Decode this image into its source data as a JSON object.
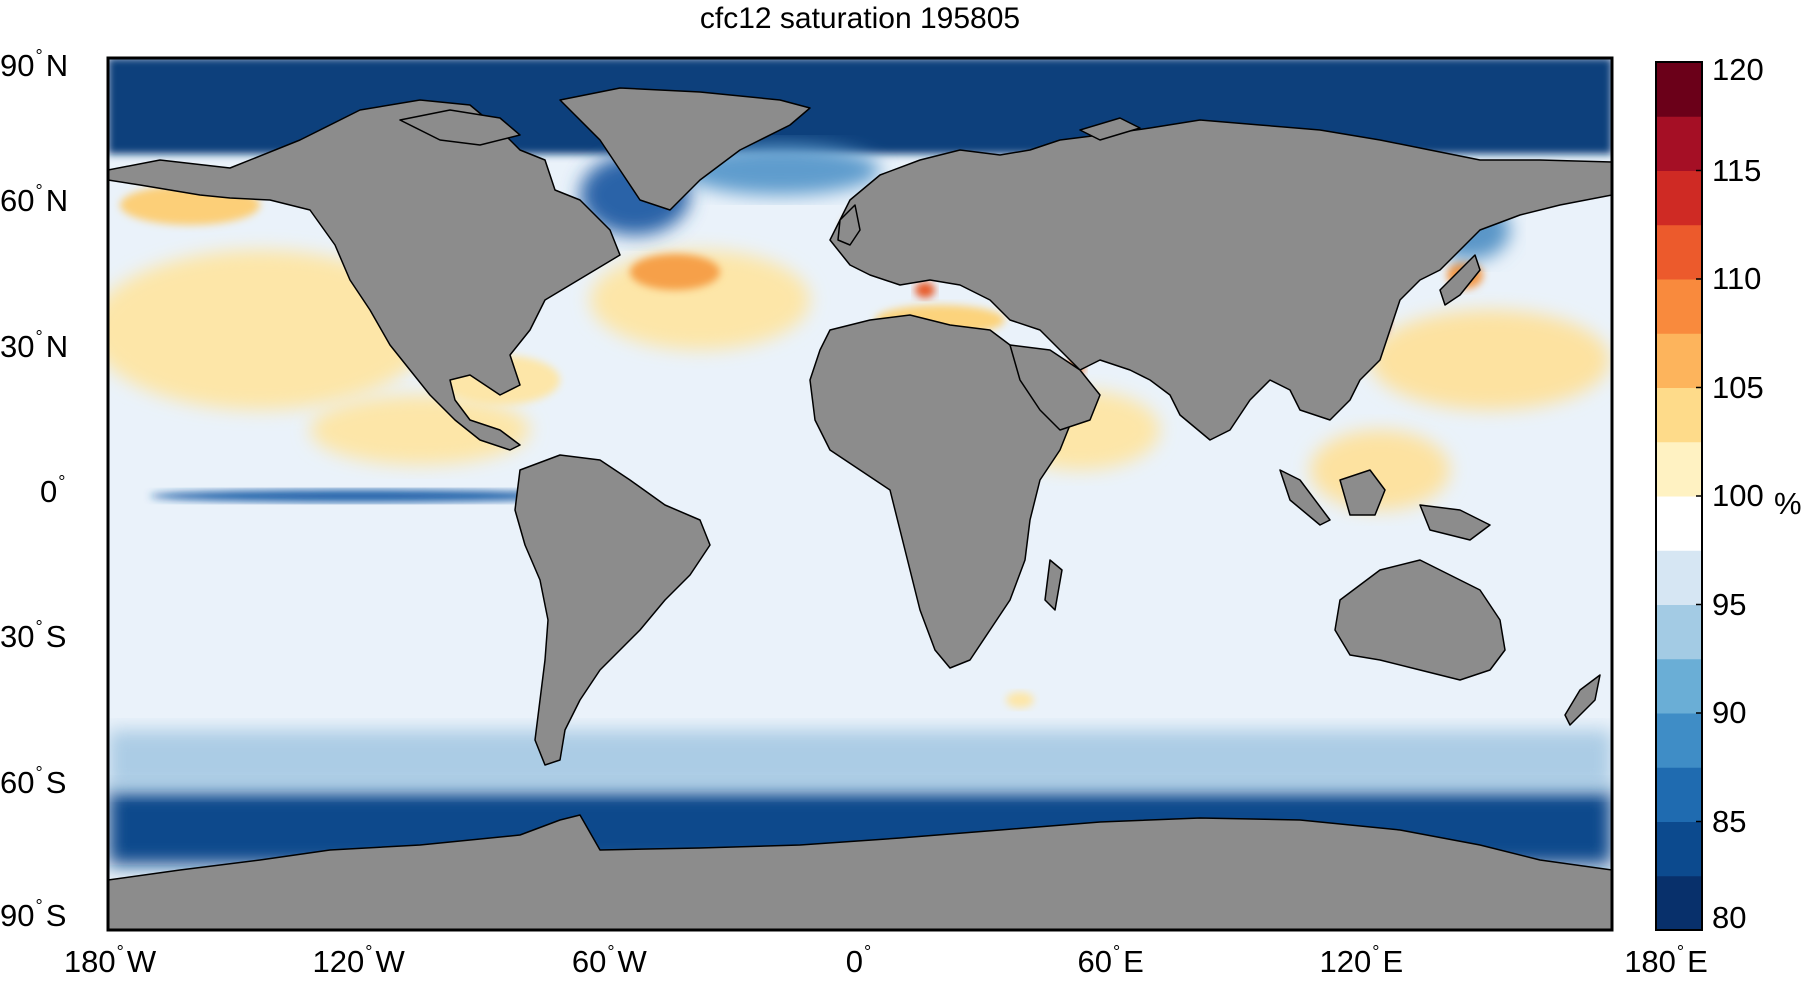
{
  "title": "cfc12 saturation 195805",
  "lat_ticks": [
    {
      "value": 90,
      "label": "90",
      "hemi": "N"
    },
    {
      "value": 60,
      "label": "60",
      "hemi": "N"
    },
    {
      "value": 30,
      "label": "30",
      "hemi": "N"
    },
    {
      "value": 0,
      "label": "0",
      "hemi": ""
    },
    {
      "value": -30,
      "label": "30",
      "hemi": "S"
    },
    {
      "value": -60,
      "label": "60",
      "hemi": "S"
    },
    {
      "value": -90,
      "label": "90",
      "hemi": "S"
    }
  ],
  "lon_ticks": [
    {
      "value": -180,
      "label": "180",
      "hemi": "W"
    },
    {
      "value": -120,
      "label": "120",
      "hemi": "W"
    },
    {
      "value": -60,
      "label": "60",
      "hemi": "W"
    },
    {
      "value": 0,
      "label": "0",
      "hemi": ""
    },
    {
      "value": 60,
      "label": "60",
      "hemi": "E"
    },
    {
      "value": 120,
      "label": "120",
      "hemi": "E"
    },
    {
      "value": 180,
      "label": "180",
      "hemi": "E"
    }
  ],
  "degree_symbol": "°",
  "colorbar": {
    "min": 80,
    "max": 120,
    "ticks": [
      "80",
      "85",
      "90",
      "95",
      "100",
      "105",
      "110",
      "115",
      "120"
    ],
    "unit": "%",
    "colors": [
      "#08306b",
      "#0c4a8e",
      "#1f6bb0",
      "#3f8dc6",
      "#6aaed6",
      "#a3cbe4",
      "#d6e6f3",
      "#ffffff",
      "#fff2c2",
      "#fedb8a",
      "#fdb45c",
      "#f98a3d",
      "#ec5a2c",
      "#cf2a24",
      "#a50f25",
      "#6b0019"
    ]
  },
  "colors": {
    "land": "#8c8c8c",
    "coast": "#000000",
    "ocean_base": "#eaf2fa",
    "high_sat": "#fde6a8",
    "very_high": "#f58b3c",
    "low_sat": "#0e3f7b"
  }
}
